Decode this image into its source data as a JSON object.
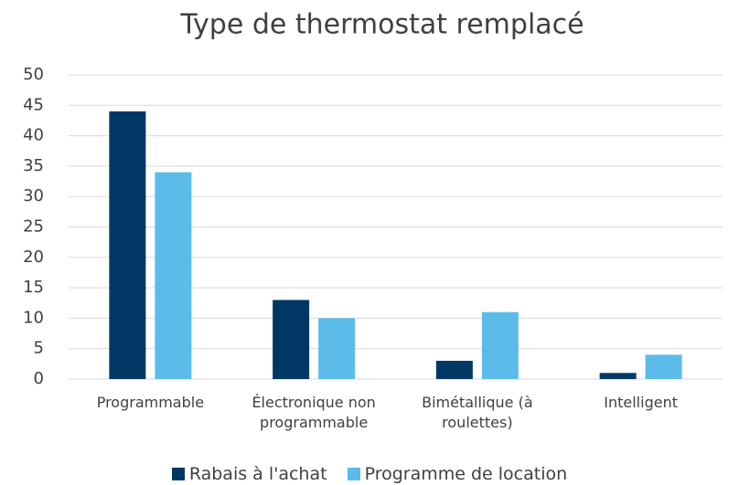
{
  "chart_data": {
    "type": "bar",
    "title": "Type de thermostat remplacé",
    "categories": [
      "Programmable",
      "Électronique non programmable",
      "Bimétallique (à roulettes)",
      "Intelligent"
    ],
    "series": [
      {
        "name": "Rabais à l'achat",
        "color": "#003865",
        "values": [
          44,
          13,
          3,
          1
        ]
      },
      {
        "name": "Programme de location",
        "color": "#5bbbe9",
        "values": [
          34,
          10,
          11,
          4
        ]
      }
    ],
    "ylim": [
      0,
      50
    ],
    "yticks": [
      0,
      5,
      10,
      15,
      20,
      25,
      30,
      35,
      40,
      45,
      50
    ],
    "grid": true,
    "legend": "bottom"
  }
}
